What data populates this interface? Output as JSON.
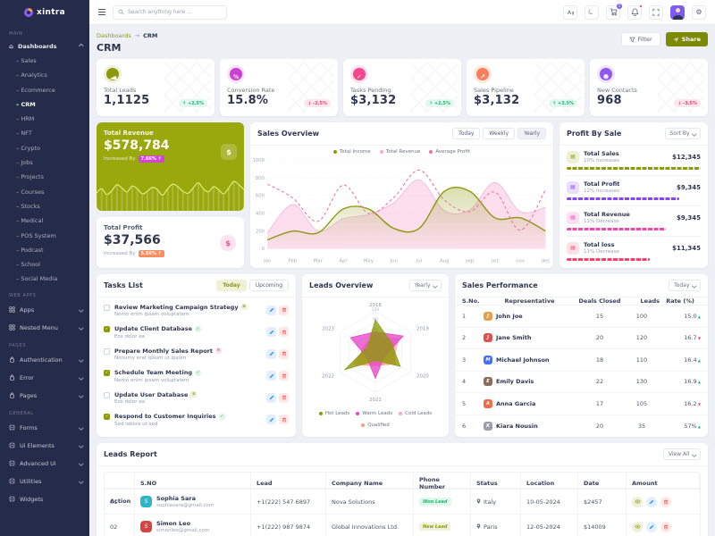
{
  "brand": {
    "name": "xintra"
  },
  "header": {
    "search_placeholder": "Search anything here ...",
    "cart_count": "5"
  },
  "sidebar": {
    "sections": {
      "main_label": "MAIN",
      "web_apps_label": "WEB APPS",
      "pages_label": "PAGES",
      "general_label": "GENERAL"
    },
    "dashboards": {
      "label": "Dashboards"
    },
    "dashboard_items": [
      {
        "label": "Sales"
      },
      {
        "label": "Analytics"
      },
      {
        "label": "Ecommerce"
      },
      {
        "label": "CRM",
        "state": "active"
      },
      {
        "label": "HRM"
      },
      {
        "label": "NFT"
      },
      {
        "label": "Crypto"
      },
      {
        "label": "Jobs"
      },
      {
        "label": "Projects"
      },
      {
        "label": "Courses"
      },
      {
        "label": "Stocks"
      },
      {
        "label": "Medical"
      },
      {
        "label": "POS System"
      },
      {
        "label": "Podcast"
      },
      {
        "label": "School"
      },
      {
        "label": "Social Media"
      }
    ],
    "web_apps": [
      {
        "label": "Apps",
        "icon": "apps-icon"
      },
      {
        "label": "Nested Menu",
        "icon": "nested-menu-icon"
      }
    ],
    "pages": [
      {
        "label": "Authentication",
        "icon": "authentication-icon"
      },
      {
        "label": "Error",
        "icon": "error-icon"
      },
      {
        "label": "Pages",
        "icon": "pages-icon"
      }
    ],
    "general": [
      {
        "label": "Forms",
        "icon": "forms-icon"
      },
      {
        "label": "Ui Elements",
        "icon": "ui-elements-icon"
      },
      {
        "label": "Advanced Ui",
        "icon": "advanced-ui-icon"
      },
      {
        "label": "Utilities",
        "icon": "utilities-icon"
      },
      {
        "label": "Widgets",
        "icon": "widgets-icon",
        "chevron": "none"
      }
    ]
  },
  "breadcrumb": {
    "parent": "Dashboards",
    "separator": "→",
    "current": "CRM"
  },
  "page": {
    "title": "CRM",
    "filter_label": "Filter",
    "share_label": "Share"
  },
  "kpis": [
    {
      "label": "Total Leads",
      "value": "1,1125",
      "delta": "+2.5%",
      "dir": "up",
      "icon": "bar-chart",
      "icon_name": "bar-chart-icon",
      "accent": "#8c9a0a",
      "tint": "#eef0d8"
    },
    {
      "label": "Conversion Rate",
      "value": "15.8%",
      "delta": "-2.5%",
      "dir": "down",
      "icon": "percent",
      "icon_name": "percent-icon",
      "accent": "#cc3fd1",
      "tint": "#f8e2fa"
    },
    {
      "label": "Tasks Pending",
      "value": "$3,132",
      "delta": "+2.5%",
      "dir": "up",
      "icon": "check-circle",
      "icon_name": "check-circle-icon",
      "accent": "#f5458c",
      "tint": "#fde3ee"
    },
    {
      "label": "Sales Pipeline",
      "value": "$3,132",
      "delta": "+3.5%",
      "dir": "up",
      "icon": "trend-up",
      "icon_name": "trend-up-icon",
      "accent": "#f97e5a",
      "tint": "#fee9e3"
    },
    {
      "label": "New Contacts",
      "value": "968",
      "delta": "-3.5%",
      "dir": "down",
      "icon": "user-plus",
      "icon_name": "user-plus-icon",
      "accent": "#9257f0",
      "tint": "#eee4fd"
    }
  ],
  "revenue_card": {
    "title": "Total Revenue",
    "value": "$578,784",
    "caption": "Increased By",
    "badge": "7.66% ↑",
    "badge_color": "#d344d6"
  },
  "profit_card": {
    "title": "Total Profit",
    "value": "$37,566",
    "caption": "Increased By",
    "badge": "5.66% ↑",
    "badge_color": "#fa8e61"
  },
  "sales_overview": {
    "title": "Sales Overview",
    "tabs": [
      {
        "label": "Today"
      },
      {
        "label": "Weekly"
      },
      {
        "label": "Yearly",
        "state": "active"
      }
    ]
  },
  "profit_by_sale": {
    "title": "Profit By Sale",
    "sort_label": "Sort By",
    "rows": [
      {
        "icon_name": "total-sales-icon",
        "title": "Total Sales",
        "sub": "10% Increases",
        "value": "$12,345",
        "color": "#8c9a0a",
        "tint": "#eef0d8",
        "width": "100%"
      },
      {
        "icon_name": "total-profit-icon",
        "title": "Total Profit",
        "sub": "12% Increases",
        "value": "$9,345",
        "color": "#8247f5",
        "tint": "#eadefd",
        "width": "84%"
      },
      {
        "icon_name": "total-revenue-icon",
        "title": "Total Revenue",
        "sub": "11% Decrease",
        "value": "$9,345",
        "color": "#ef46b2",
        "tint": "#fce0f1",
        "width": "74%"
      },
      {
        "icon_name": "total-loss-icon",
        "title": "Total loss",
        "sub": "11% Decrease",
        "value": "$11,345",
        "color": "#fb3e68",
        "tint": "#fee0e7",
        "width": "62%"
      }
    ]
  },
  "tasks_list": {
    "title": "Tasks List",
    "filters": [
      {
        "label": "Today",
        "state": "active"
      },
      {
        "label": "Upcoming"
      }
    ],
    "items": [
      {
        "title": "Review Marketing Campaign Strategy",
        "sub": "Nemo enim ipsam voluptatem",
        "marker": "doc",
        "state": ""
      },
      {
        "title": "Update Client Database",
        "sub": "Eos dolor ea",
        "marker": "check",
        "state": "checked"
      },
      {
        "title": "Prepare Monthly Sales Report",
        "sub": "Nonumy erat ipsum ut ipsum",
        "marker": "flower",
        "state": ""
      },
      {
        "title": "Schedule Team Meeting",
        "sub": "Nemo enim ipsam voluptatem",
        "marker": "check",
        "state": "checked"
      },
      {
        "title": "Update User Database",
        "sub": "Eos dolor ea",
        "marker": "doc",
        "state": ""
      },
      {
        "title": "Respond to Customer Inquiries",
        "sub": "Sed labore ut sed",
        "marker": "check",
        "state": "checked"
      }
    ]
  },
  "leads_overview": {
    "title": "Leads Overview",
    "dropdown": "Yearly"
  },
  "sales_performance": {
    "title": "Sales Performance",
    "dropdown": "Today",
    "columns": [
      "S.No.",
      "Representative",
      "Deals Closed",
      "Leads",
      "Rate (%)"
    ],
    "rows": [
      {
        "sno": "1",
        "name": "John Joe",
        "initial": "J",
        "avatar_color": "#e2a14e",
        "deals": "15",
        "leads": "100",
        "rate": "15.0",
        "dir": "up"
      },
      {
        "sno": "2",
        "name": "Jane Smith",
        "initial": "J",
        "avatar_color": "#e0524e",
        "deals": "20",
        "leads": "120",
        "rate": "16.7",
        "dir": "down"
      },
      {
        "sno": "3",
        "name": "Michael Johnson",
        "initial": "M",
        "avatar_color": "#4671f5",
        "deals": "18",
        "leads": "110",
        "rate": "16.4",
        "dir": "up"
      },
      {
        "sno": "4",
        "name": "Emily Davis",
        "initial": "E",
        "avatar_color": "#8a6d5c",
        "deals": "22",
        "leads": "130",
        "rate": "16.9",
        "dir": "up"
      },
      {
        "sno": "5",
        "name": "Anna Garcia",
        "initial": "A",
        "avatar_color": "#ef6a45",
        "deals": "17",
        "leads": "105",
        "rate": "16.2",
        "dir": "down"
      },
      {
        "sno": "6",
        "name": "Kiara Nousin",
        "initial": "K",
        "avatar_color": "#9aa0ab",
        "deals": "20",
        "leads": "35",
        "rate": "57%",
        "dir": "up"
      }
    ]
  },
  "leads_report": {
    "title": "Leads Report",
    "dropdown": "View All",
    "columns": [
      "S.NO",
      "Lead",
      "Company Name",
      "Phone Number",
      "Status",
      "Location",
      "Date",
      "Amount",
      "Action"
    ],
    "rows": [
      {
        "sno": "01",
        "name": "Sophia Sara",
        "email": "sophiasara@gmail.com",
        "initial": "S",
        "avatar_color": "#2fb5c8",
        "phone": "+1(222) 547 6897",
        "company": "Nova Solutions",
        "status": "Won Lead",
        "tone": "success",
        "location": "Italy",
        "date": "10-05-2024",
        "amount": "$2457"
      },
      {
        "sno": "02",
        "name": "Simon Leo",
        "email": "simonleo@gmail.com",
        "initial": "S",
        "avatar_color": "#d64545",
        "phone": "+1(222) 987 9874",
        "company": "Global Innovations Ltd.",
        "status": "New Lead",
        "tone": "warning",
        "location": "Paris",
        "date": "12-05-2024",
        "amount": "$14009"
      }
    ]
  },
  "chart_data": [
    {
      "id": "revenue-sparkline",
      "type": "line",
      "values": [
        45,
        58,
        40,
        52,
        70,
        60,
        48,
        66,
        58,
        42,
        50,
        62,
        55,
        38,
        58,
        72,
        64,
        50,
        44,
        60,
        76,
        58,
        48,
        64,
        55,
        42,
        60,
        80,
        70,
        55
      ]
    },
    {
      "id": "sales-overview",
      "type": "area",
      "x": [
        "Jan",
        "Feb",
        "Mar",
        "Apr",
        "May",
        "Jun",
        "Jul",
        "Aug",
        "sep",
        "oct",
        "nov",
        "dec"
      ],
      "ylim": [
        0,
        1000
      ],
      "yticks": [
        0,
        200,
        400,
        600,
        800,
        1000
      ],
      "legend_position": "top",
      "series": [
        {
          "name": "Total Income",
          "color": "#8c9a0a",
          "style": "solid-gradient",
          "values": [
            100,
            200,
            180,
            450,
            450,
            230,
            230,
            650,
            650,
            350,
            350,
            200
          ]
        },
        {
          "name": "Total Revenue",
          "color": "#f6a8d3",
          "style": "area",
          "values": [
            180,
            500,
            200,
            340,
            390,
            520,
            780,
            430,
            440,
            750,
            420,
            470
          ]
        },
        {
          "name": "Average Profit",
          "color": "#f0739f",
          "style": "dashed",
          "values": [
            730,
            575,
            310,
            720,
            400,
            580,
            890,
            550,
            420,
            640,
            210,
            670
          ]
        }
      ]
    },
    {
      "id": "leads-radar",
      "type": "radar",
      "axes": [
        "2018",
        "2019",
        "2020",
        "2021",
        "2022",
        "2023"
      ],
      "rmax": 120,
      "rticks": [
        0,
        30,
        60,
        90,
        120
      ],
      "legend_position": "bottom",
      "series": [
        {
          "name": "Hot Leads",
          "color": "#8c9a0a",
          "values": [
            95,
            55,
            85,
            25,
            105,
            28
          ]
        },
        {
          "name": "Warm Leads",
          "color": "#e747c8",
          "values": [
            60,
            95,
            30,
            78,
            30,
            85
          ]
        },
        {
          "name": "Cold Leads",
          "color": "#f9aac0",
          "values": [
            45,
            80,
            60,
            35,
            60,
            40
          ]
        },
        {
          "name": "Qualified",
          "color": "#fb9a7e",
          "values": [
            55,
            60,
            70,
            40,
            75,
            35
          ]
        }
      ]
    }
  ]
}
